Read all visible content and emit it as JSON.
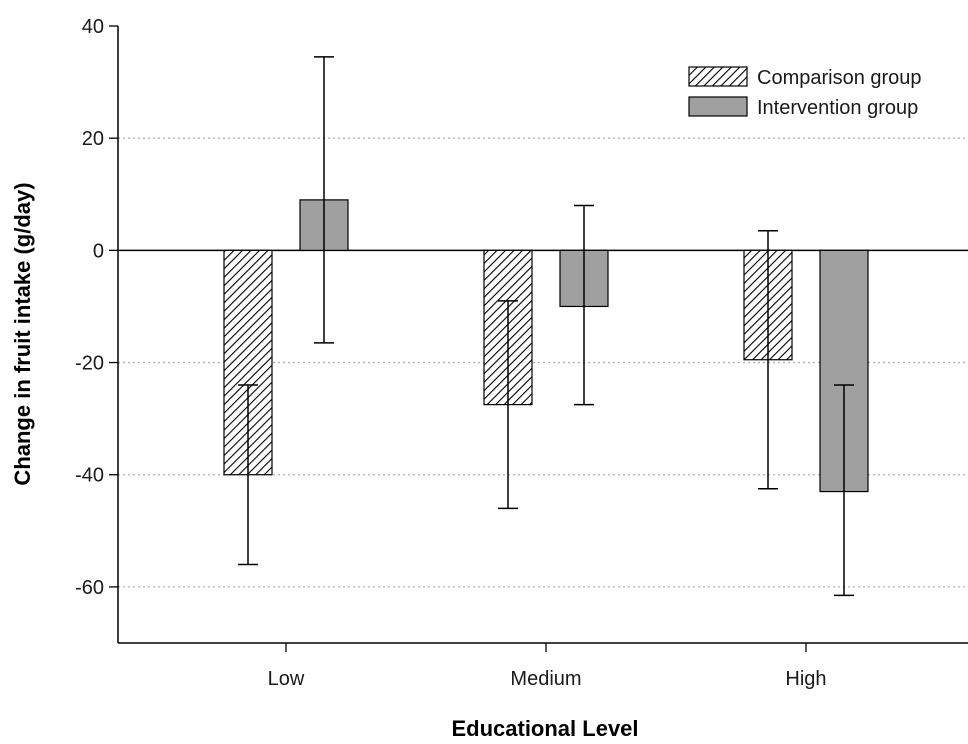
{
  "chart_data": {
    "type": "bar",
    "categories": [
      "Low",
      "Medium",
      "High"
    ],
    "series": [
      {
        "name": "Comparison group",
        "pattern": "diagonal-hatch",
        "values": [
          -40,
          -27.5,
          -19.5
        ],
        "error_low": [
          -56,
          -46,
          -42.5
        ],
        "error_high": [
          -24,
          -9,
          3.5
        ]
      },
      {
        "name": "Intervention group",
        "color": "#a0a0a0",
        "values": [
          9,
          -10,
          -43
        ],
        "error_low": [
          -16.5,
          -27.5,
          -61.5
        ],
        "error_high": [
          34.5,
          8,
          -24
        ]
      }
    ],
    "xlabel": "Educational Level",
    "ylabel": "Change in fruit intake (g/day)",
    "ylim": [
      -70,
      40
    ],
    "yticks": [
      40,
      20,
      0,
      -20,
      -40,
      -60
    ],
    "grid": "horizontal dotted",
    "legend_position": "top-right",
    "colors": {
      "bar_edge": "#000000",
      "hatch": "#000000",
      "intervention_fill": "#a0a0a0",
      "grid": "#b0b0b0"
    }
  }
}
